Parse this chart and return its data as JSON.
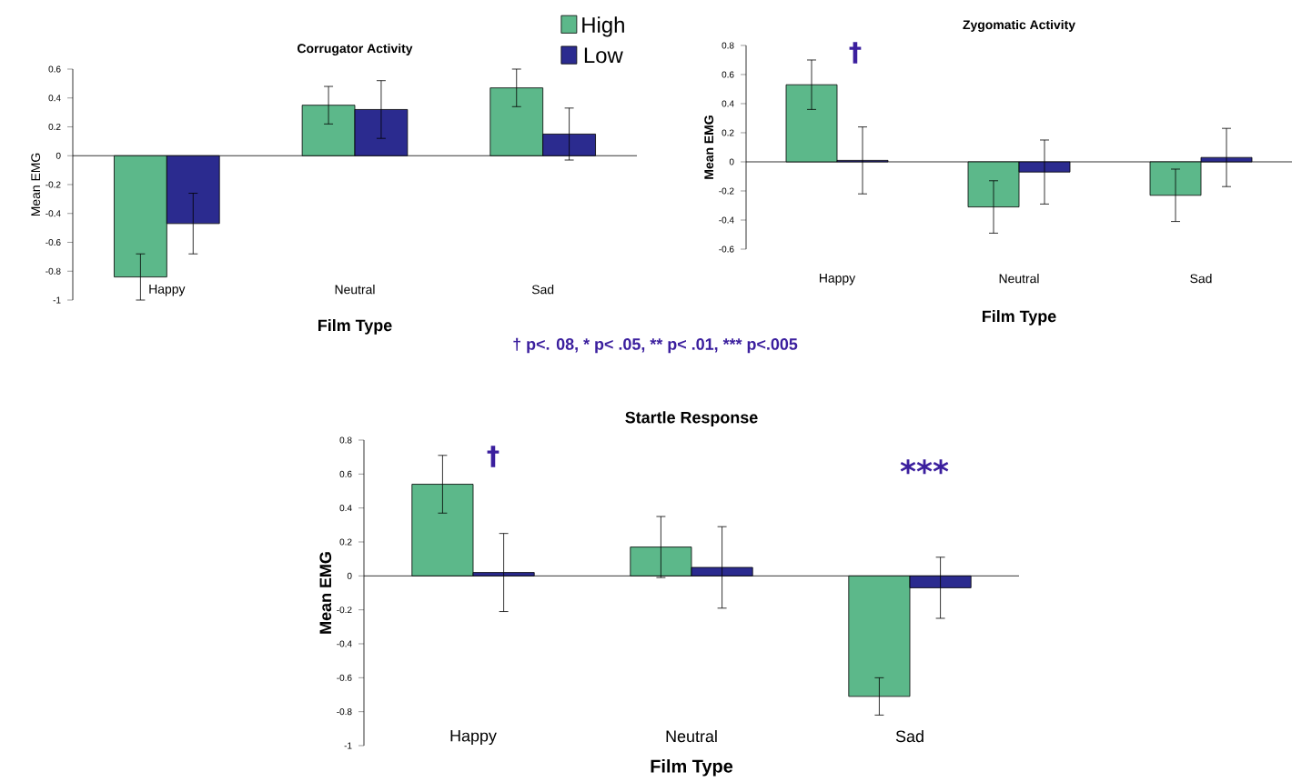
{
  "chart_data": [
    {
      "type": "bar",
      "title": "Corrugator Activity",
      "xlabel": "Film Type",
      "ylabel": "Mean EMG",
      "categories": [
        "Happy",
        "Neutral",
        "Sad"
      ],
      "series": [
        {
          "name": "High",
          "color": "#5cb88a",
          "values": [
            -0.84,
            0.35,
            0.47
          ],
          "errors": [
            0.16,
            0.13,
            0.13
          ]
        },
        {
          "name": "Low",
          "color": "#2b2b8f",
          "values": [
            -0.47,
            0.32,
            0.15
          ],
          "errors": [
            0.21,
            0.2,
            0.18
          ]
        }
      ],
      "ylim": [
        -1,
        0.6
      ],
      "yticks": [
        -1,
        -0.8,
        -0.6,
        -0.4,
        -0.2,
        0,
        0.2,
        0.4,
        0.6
      ],
      "legend": "top right"
    },
    {
      "type": "bar",
      "title": "Zygomatic Activity",
      "xlabel": "Film Type",
      "ylabel": "Mean EMG",
      "categories": [
        "Happy",
        "Neutral",
        "Sad"
      ],
      "series": [
        {
          "color": "#5cb88a",
          "values": [
            0.53,
            -0.31,
            -0.23
          ],
          "errors": [
            0.17,
            0.18,
            0.18
          ]
        },
        {
          "color": "#2b2b8f",
          "values": [
            0.01,
            -0.07,
            0.03
          ],
          "errors": [
            0.23,
            0.22,
            0.2
          ]
        }
      ],
      "ylim": [
        -0.6,
        0.8
      ],
      "yticks": [
        -0.6,
        -0.4,
        -0.2,
        0,
        0.2,
        0.4,
        0.6,
        0.8
      ],
      "annotations": [
        "†"
      ]
    },
    {
      "type": "bar",
      "title": "Startle Response",
      "xlabel": "Film Type",
      "ylabel": "Mean EMG",
      "categories": [
        "Happy",
        "Neutral",
        "Sad"
      ],
      "series": [
        {
          "color": "#5cb88a",
          "values": [
            0.54,
            0.17,
            -0.71
          ],
          "errors": [
            0.17,
            0.18,
            0.11
          ]
        },
        {
          "color": "#2b2b8f",
          "values": [
            0.02,
            0.05,
            -0.07
          ],
          "errors": [
            0.23,
            0.24,
            0.18
          ]
        }
      ],
      "ylim": [
        -1,
        0.8
      ],
      "yticks": [
        -1,
        -0.8,
        -0.6,
        -0.4,
        -0.2,
        0,
        0.2,
        0.4,
        0.6,
        0.8
      ],
      "annotations": [
        "†",
        "***",
        "† p<. 08,  * p< .05,  ** p< .01, *** p<.005"
      ]
    }
  ]
}
